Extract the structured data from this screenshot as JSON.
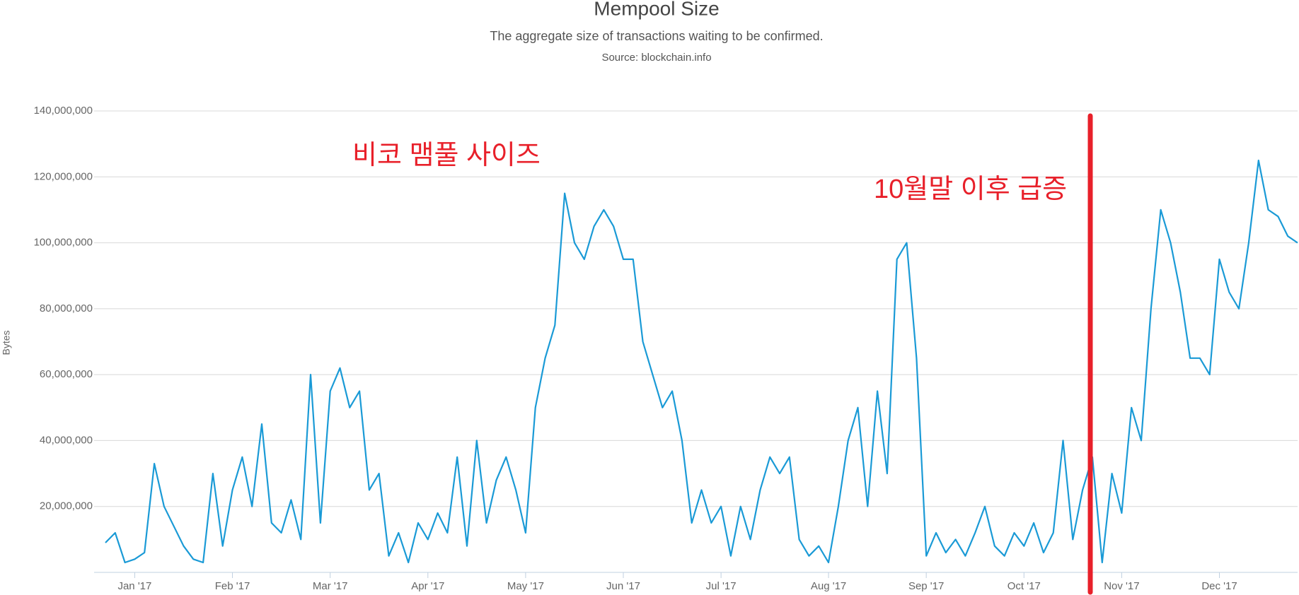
{
  "chart_data": {
    "type": "line",
    "title": "Mempool Size",
    "subtitle": "The aggregate size of transactions waiting to be confirmed.",
    "source": "Source: blockchain.info",
    "y_label": "Bytes",
    "annotations": [
      "비코 맴풀 사이즈",
      "10월말 이후 급증"
    ],
    "color": "#1a9ad6",
    "grid": true,
    "categories": [
      null,
      null,
      null,
      "Jan '17",
      null,
      null,
      null,
      null,
      null,
      null,
      null,
      null,
      null,
      "Feb '17",
      null,
      null,
      null,
      null,
      null,
      null,
      null,
      null,
      null,
      "Mar '17",
      null,
      null,
      null,
      null,
      null,
      null,
      null,
      null,
      null,
      "Apr '17",
      null,
      null,
      null,
      null,
      null,
      null,
      null,
      null,
      null,
      "May '17",
      null,
      null,
      null,
      null,
      null,
      null,
      null,
      null,
      null,
      "Jun '17",
      null,
      null,
      null,
      null,
      null,
      null,
      null,
      null,
      null,
      "Jul '17",
      null,
      null,
      null,
      null,
      null,
      null,
      null,
      null,
      null,
      null,
      "Aug '17",
      null,
      null,
      null,
      null,
      null,
      null,
      null,
      null,
      null,
      "Sep '17",
      null,
      null,
      null,
      null,
      null,
      null,
      null,
      null,
      null,
      "Oct '17",
      null,
      null,
      null,
      null,
      null,
      null,
      null,
      null,
      null,
      "Nov '17",
      null,
      null,
      null,
      null,
      null,
      null,
      null,
      null,
      null,
      "Dec '17",
      null,
      null,
      null,
      null,
      null,
      null,
      null,
      null
    ],
    "values": [
      9000000,
      12000000,
      3000000,
      4000000,
      6000000,
      33000000,
      20000000,
      14000000,
      8000000,
      4000000,
      3000000,
      30000000,
      8000000,
      25000000,
      35000000,
      20000000,
      45000000,
      15000000,
      12000000,
      22000000,
      10000000,
      60000000,
      15000000,
      55000000,
      62000000,
      50000000,
      55000000,
      25000000,
      30000000,
      5000000,
      12000000,
      3000000,
      15000000,
      10000000,
      18000000,
      12000000,
      35000000,
      8000000,
      40000000,
      15000000,
      28000000,
      35000000,
      25000000,
      12000000,
      50000000,
      65000000,
      75000000,
      115000000,
      100000000,
      95000000,
      105000000,
      110000000,
      105000000,
      95000000,
      95000000,
      70000000,
      60000000,
      50000000,
      55000000,
      40000000,
      15000000,
      25000000,
      15000000,
      20000000,
      5000000,
      20000000,
      10000000,
      25000000,
      35000000,
      30000000,
      35000000,
      10000000,
      5000000,
      8000000,
      3000000,
      20000000,
      40000000,
      50000000,
      20000000,
      55000000,
      30000000,
      95000000,
      100000000,
      65000000,
      5000000,
      12000000,
      6000000,
      10000000,
      5000000,
      12000000,
      20000000,
      8000000,
      5000000,
      12000000,
      8000000,
      15000000,
      6000000,
      12000000,
      40000000,
      10000000,
      25000000,
      35000000,
      3000000,
      30000000,
      18000000,
      50000000,
      40000000,
      80000000,
      110000000,
      100000000,
      85000000,
      65000000,
      65000000,
      60000000,
      95000000,
      85000000,
      80000000,
      100000000,
      125000000,
      110000000,
      108000000,
      102000000,
      100000000
    ],
    "ylim": [
      0,
      140000000
    ],
    "yticks": [
      {
        "value": 20000000,
        "label": "20,000,000"
      },
      {
        "value": 40000000,
        "label": "40,000,000"
      },
      {
        "value": 60000000,
        "label": "60,000,000"
      },
      {
        "value": 80000000,
        "label": "80,000,000"
      },
      {
        "value": 100000000,
        "label": "100,000,000"
      },
      {
        "value": 120000000,
        "label": "120,000,000"
      },
      {
        "value": 140000000,
        "label": "140,000,000"
      }
    ]
  }
}
